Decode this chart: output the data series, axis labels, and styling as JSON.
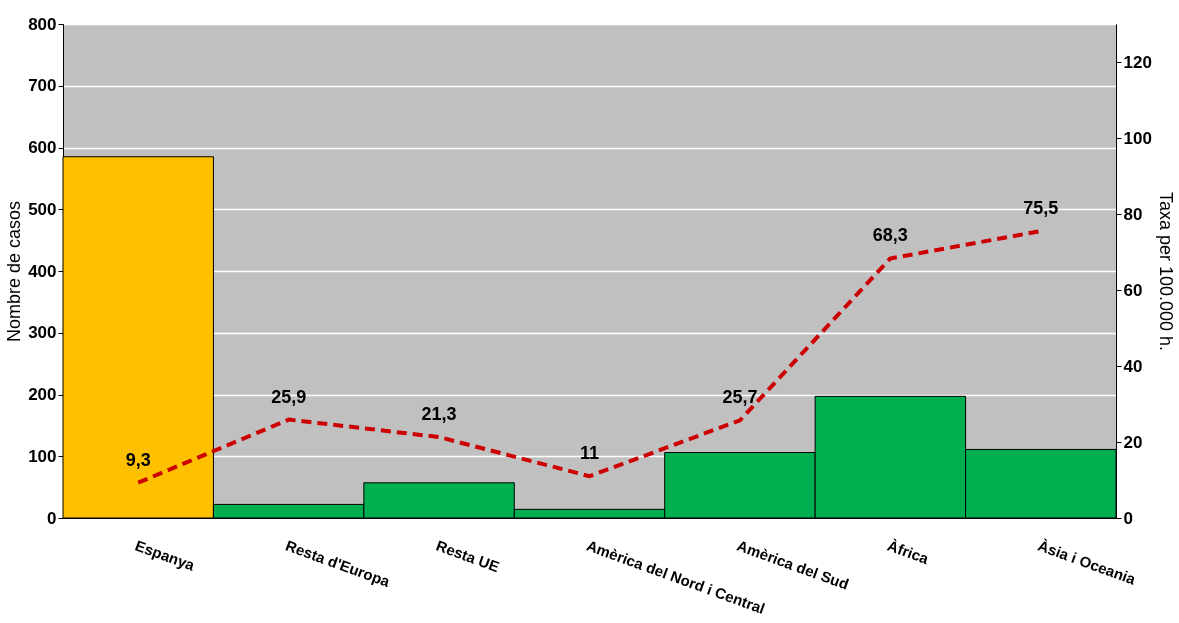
{
  "chart_data": {
    "type": "bar",
    "ylabel": "Nombre de casos",
    "y2label": "Taxa per 100.000 h.",
    "categories": [
      "Espanya",
      "Resta d'Europa",
      "Resta UE",
      "Amèrica  del Nord i Central",
      "Amèrica  del Sud",
      "Àfrica",
      "Àsia  i Oceania"
    ],
    "series": [
      {
        "colors": [
          "#ffc000",
          "#00b050",
          "#00b050",
          "#00b050",
          "#00b050",
          "#00b050",
          "#00b050"
        ],
        "values": [
          585,
          22,
          57,
          14,
          106,
          197,
          111
        ]
      },
      {
        "type": "line",
        "axis": "y2",
        "color": "#cc0000",
        "line_style": "dashed",
        "values": [
          9.3,
          25.9,
          21.3,
          11,
          25.7,
          68.3,
          75.5
        ],
        "value_labels": [
          "9,3",
          "25,9",
          "21,3",
          "11",
          "25,7",
          "68,3",
          "75,5"
        ]
      }
    ],
    "ylim": [
      0,
      800
    ],
    "yticks": [
      0,
      100,
      200,
      300,
      400,
      500,
      600,
      700,
      800
    ],
    "y2lim": [
      0,
      130
    ],
    "y2ticks": [
      0,
      20,
      40,
      60,
      80,
      100,
      120
    ],
    "grid": "y",
    "marker": "none"
  }
}
